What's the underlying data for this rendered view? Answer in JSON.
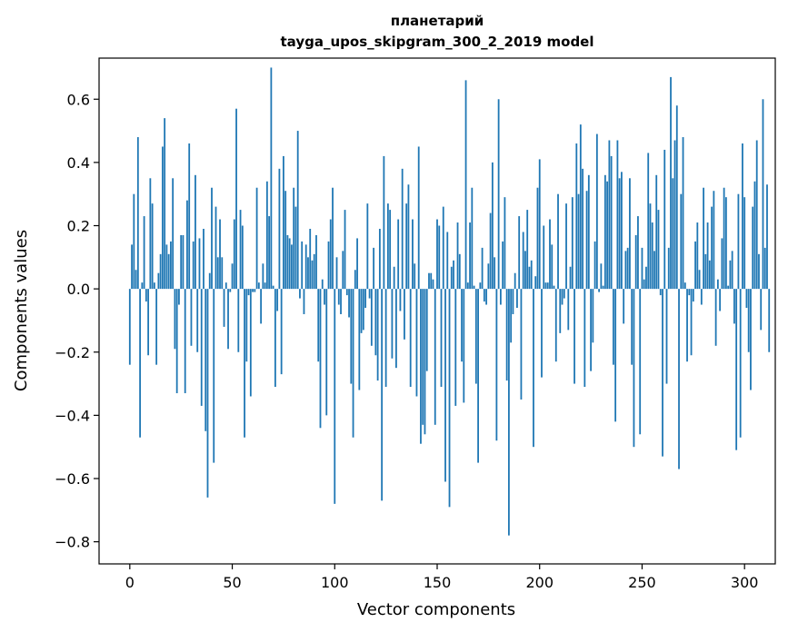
{
  "chart_data": {
    "type": "bar",
    "title": "планетарий",
    "subtitle": "tayga_upos_skipgram_300_2_2019 model",
    "xlabel": "Vector components",
    "ylabel": "Components values",
    "xlim": [
      -15,
      315
    ],
    "ylim": [
      -0.87,
      0.73
    ],
    "xticks": [
      0,
      50,
      100,
      150,
      200,
      250,
      300
    ],
    "yticks": [
      -0.8,
      -0.6,
      -0.4,
      -0.2,
      0.0,
      0.2,
      0.4,
      0.6
    ],
    "ytick_labels": [
      "−0.8",
      "−0.6",
      "−0.4",
      "−0.2",
      "0.0",
      "0.2",
      "0.4",
      "0.6"
    ],
    "grid": false,
    "bar_color": "#1f77b4",
    "values": [
      -0.24,
      0.14,
      0.3,
      0.06,
      0.48,
      -0.47,
      0.02,
      0.23,
      -0.04,
      -0.21,
      0.35,
      0.27,
      0.02,
      -0.24,
      0.05,
      0.11,
      0.45,
      0.54,
      0.14,
      0.11,
      0.15,
      0.35,
      -0.19,
      -0.33,
      -0.05,
      0.17,
      0.17,
      -0.33,
      0.28,
      0.46,
      -0.18,
      0.15,
      0.36,
      -0.2,
      0.16,
      -0.37,
      0.19,
      -0.45,
      -0.66,
      0.05,
      0.32,
      -0.55,
      0.26,
      0.1,
      0.22,
      0.1,
      -0.12,
      0.02,
      -0.19,
      -0.01,
      0.08,
      0.22,
      0.57,
      -0.2,
      0.25,
      0.2,
      -0.47,
      -0.23,
      -0.02,
      -0.34,
      -0.01,
      -0.01,
      0.32,
      0.02,
      -0.11,
      0.08,
      0.02,
      0.34,
      0.23,
      0.7,
      0.01,
      -0.31,
      -0.07,
      0.38,
      -0.27,
      0.42,
      0.31,
      0.17,
      0.16,
      0.14,
      0.32,
      0.26,
      0.5,
      -0.03,
      0.15,
      -0.08,
      0.14,
      0.1,
      0.19,
      0.09,
      0.11,
      0.17,
      -0.23,
      -0.44,
      0.03,
      -0.05,
      -0.4,
      0.15,
      0.22,
      0.32,
      -0.68,
      0.1,
      -0.05,
      -0.08,
      0.12,
      0.25,
      -0.02,
      -0.09,
      -0.3,
      -0.47,
      0.06,
      0.16,
      -0.32,
      -0.14,
      -0.13,
      -0.06,
      0.27,
      -0.03,
      -0.18,
      0.13,
      -0.21,
      -0.29,
      0.19,
      -0.67,
      0.42,
      -0.31,
      0.27,
      0.25,
      -0.22,
      0.07,
      -0.25,
      0.22,
      -0.07,
      0.38,
      -0.16,
      0.27,
      0.33,
      -0.31,
      0.22,
      0.08,
      -0.34,
      0.45,
      -0.49,
      -0.43,
      -0.46,
      -0.26,
      0.05,
      0.05,
      0.03,
      -0.43,
      0.22,
      0.2,
      -0.31,
      0.26,
      -0.61,
      0.18,
      -0.69,
      0.07,
      0.09,
      -0.37,
      0.21,
      0.11,
      -0.23,
      -0.36,
      0.66,
      0.02,
      0.21,
      0.32,
      0.01,
      -0.3,
      -0.55,
      0.02,
      0.13,
      -0.04,
      -0.05,
      0.08,
      0.24,
      0.4,
      0.1,
      -0.48,
      0.6,
      -0.05,
      0.15,
      0.29,
      -0.29,
      -0.78,
      -0.17,
      -0.08,
      0.05,
      -0.06,
      0.23,
      -0.35,
      0.18,
      0.12,
      0.25,
      0.07,
      0.09,
      -0.5,
      0.04,
      0.32,
      0.41,
      -0.28,
      0.2,
      0.02,
      0.02,
      0.22,
      0.14,
      0.01,
      -0.23,
      0.3,
      -0.14,
      -0.05,
      -0.03,
      0.27,
      -0.13,
      0.07,
      0.29,
      -0.3,
      0.46,
      0.3,
      0.52,
      0.38,
      -0.31,
      0.31,
      0.36,
      -0.26,
      -0.17,
      0.15,
      0.49,
      -0.01,
      0.08,
      0.01,
      0.36,
      0.34,
      0.47,
      0.42,
      -0.24,
      -0.42,
      0.47,
      0.35,
      0.37,
      -0.11,
      0.12,
      0.13,
      0.35,
      -0.24,
      -0.5,
      0.17,
      0.23,
      -0.46,
      0.13,
      0.03,
      0.07,
      0.43,
      0.27,
      0.21,
      0.12,
      0.36,
      0.25,
      -0.02,
      -0.53,
      0.44,
      -0.3,
      0.13,
      0.67,
      0.35,
      0.47,
      0.58,
      -0.57,
      0.3,
      0.48,
      0.02,
      -0.23,
      -0.02,
      -0.21,
      -0.04,
      0.15,
      0.21,
      0.06,
      -0.05,
      0.32,
      0.11,
      0.21,
      0.09,
      0.26,
      0.31,
      -0.18,
      0.03,
      -0.07,
      0.16,
      0.32,
      0.29,
      0.01,
      0.09,
      0.12,
      -0.11,
      -0.51,
      0.3,
      -0.47,
      0.46,
      0.29,
      -0.06,
      -0.2,
      -0.32,
      0.26,
      0.34,
      0.47,
      0.11,
      -0.13,
      0.6,
      0.13,
      0.33,
      -0.2
    ]
  }
}
